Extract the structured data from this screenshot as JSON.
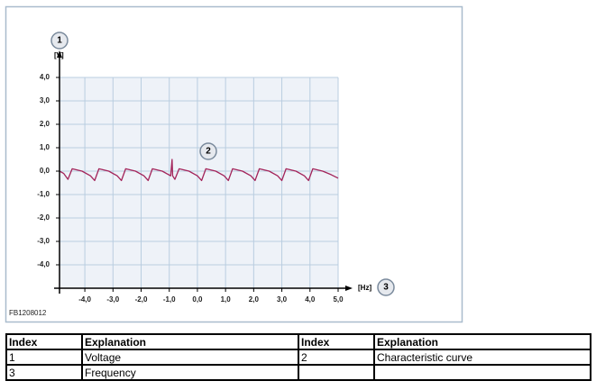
{
  "figure_id": "FB1208012",
  "callouts": [
    "1",
    "2",
    "3"
  ],
  "chart_data": {
    "type": "line",
    "x_label": "[Hz]",
    "y_label": "[V]",
    "xlim": [
      -4.9,
      5
    ],
    "ylim": [
      -5,
      4
    ],
    "xticks": [
      {
        "value": -4,
        "label": "-4,0"
      },
      {
        "value": -3,
        "label": "-3,0"
      },
      {
        "value": -2,
        "label": "-2,0"
      },
      {
        "value": -1,
        "label": "-1,0"
      },
      {
        "value": 0,
        "label": "0,0"
      },
      {
        "value": 1,
        "label": "1,0"
      },
      {
        "value": 2,
        "label": "2,0"
      },
      {
        "value": 3,
        "label": "3,0"
      },
      {
        "value": 4,
        "label": "4,0"
      },
      {
        "value": 5,
        "label": "5,0"
      }
    ],
    "yticks": [
      {
        "value": 4,
        "label": "4,0"
      },
      {
        "value": 3,
        "label": "3,0"
      },
      {
        "value": 2,
        "label": "2,0"
      },
      {
        "value": 1,
        "label": "1,0"
      },
      {
        "value": 0,
        "label": "0,0"
      },
      {
        "value": -1,
        "label": "-1,0"
      },
      {
        "value": -2,
        "label": "-2,0"
      },
      {
        "value": -3,
        "label": "-3,0"
      },
      {
        "value": -4,
        "label": "-4,0"
      }
    ],
    "grid": true,
    "x": [
      -4.9,
      -4.75,
      -4.6,
      -4.45,
      -4.1,
      -3.8,
      -3.65,
      -3.5,
      -3.15,
      -2.85,
      -2.7,
      -2.55,
      -2.2,
      -1.9,
      -1.75,
      -1.6,
      -1.25,
      -0.95,
      -0.9,
      -0.88,
      -0.8,
      -0.65,
      -0.3,
      0.0,
      0.15,
      0.3,
      0.65,
      0.95,
      1.1,
      1.25,
      1.6,
      1.9,
      2.05,
      2.2,
      2.55,
      2.85,
      3.0,
      3.15,
      3.5,
      3.8,
      3.95,
      4.1,
      4.45,
      4.75,
      5.0
    ],
    "series": [
      {
        "color": "#a3245a",
        "values": [
          0.0,
          -0.1,
          -0.35,
          0.1,
          0.0,
          -0.2,
          -0.4,
          0.1,
          0.0,
          -0.2,
          -0.4,
          0.1,
          0.0,
          -0.2,
          -0.4,
          0.1,
          0.0,
          -0.2,
          0.5,
          -0.2,
          -0.35,
          0.1,
          0.0,
          -0.2,
          -0.4,
          0.1,
          0.0,
          -0.2,
          -0.4,
          0.1,
          0.0,
          -0.2,
          -0.4,
          0.1,
          0.0,
          -0.2,
          -0.4,
          0.1,
          0.0,
          -0.2,
          -0.4,
          0.1,
          0.0,
          -0.15,
          -0.3
        ]
      }
    ]
  },
  "table": {
    "header": [
      "Index",
      "Explanation",
      "Index",
      "Explanation"
    ],
    "rows": [
      [
        "1",
        "Voltage",
        "2",
        "Characteristic curve"
      ],
      [
        "3",
        "Frequency"
      ]
    ]
  }
}
